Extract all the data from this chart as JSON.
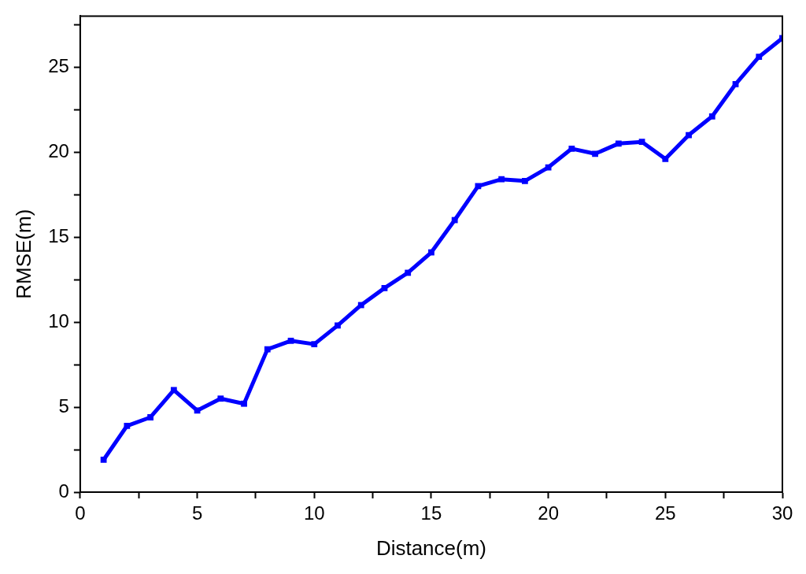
{
  "chart_data": {
    "type": "line",
    "xlabel": "Distance(m)",
    "ylabel": "RMSE(m)",
    "x": [
      1,
      2,
      3,
      4,
      5,
      6,
      7,
      8,
      9,
      10,
      11,
      12,
      13,
      14,
      15,
      16,
      17,
      18,
      19,
      20,
      21,
      22,
      23,
      24,
      25,
      26,
      27,
      28,
      29,
      30
    ],
    "series": [
      {
        "color": "#0000ff",
        "values": [
          1.9,
          3.9,
          4.4,
          6.0,
          4.8,
          5.5,
          5.2,
          8.4,
          8.9,
          8.7,
          9.8,
          11.0,
          12.0,
          12.9,
          14.1,
          16.0,
          18.0,
          18.4,
          18.3,
          19.1,
          20.2,
          19.9,
          20.5,
          20.6,
          19.6,
          21.0,
          22.1,
          24.0,
          25.6,
          26.7
        ]
      }
    ],
    "xlim": [
      0,
      30
    ],
    "ylim": [
      0,
      28
    ],
    "xticks": [
      0,
      {
        "value": 2.5,
        "label": null
      },
      5,
      {
        "value": 7.5,
        "label": null
      },
      10,
      {
        "value": 12.5,
        "label": null
      },
      15,
      {
        "value": 17.5,
        "label": null
      },
      20,
      {
        "value": 22.5,
        "label": null
      },
      25,
      {
        "value": 27.5,
        "label": null
      },
      30
    ],
    "yticks": [
      0,
      {
        "value": 2.5,
        "label": null
      },
      5,
      {
        "value": 7.5,
        "label": null
      },
      10,
      {
        "value": 12.5,
        "label": null
      },
      15,
      {
        "value": 17.5,
        "label": null
      },
      20,
      {
        "value": 22.5,
        "label": null
      },
      25,
      {
        "value": 27.5,
        "label": null
      }
    ],
    "grid": false,
    "legend": false,
    "marker": "square",
    "line_style": "solid"
  }
}
